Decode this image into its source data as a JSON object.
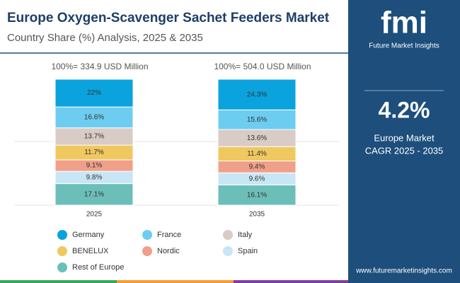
{
  "chart_data": {
    "type": "stacked_bar",
    "title": "Europe Oxygen-Scavenger Sachet Feeders Market",
    "subtitle": "Country Share (%) Analysis, 2025 & 2035",
    "categories": [
      "2025",
      "2035"
    ],
    "category_totals": [
      "100%= 334.9 USD Million",
      "100%= 504.0 USD Million"
    ],
    "ylim": [
      0,
      100
    ],
    "series": [
      {
        "name": "Germany",
        "color": "#0aa3dd",
        "values": [
          22,
          24.3
        ],
        "value_labels": [
          "22%",
          "24.3%"
        ]
      },
      {
        "name": "France",
        "color": "#6dcdf0",
        "values": [
          16.6,
          15.6
        ],
        "value_labels": [
          "16.6%",
          "15.6%"
        ]
      },
      {
        "name": "Italy",
        "color": "#d9cbc5",
        "values": [
          13.7,
          13.6
        ],
        "value_labels": [
          "13.7%",
          "13.6%"
        ]
      },
      {
        "name": "BENELUX",
        "color": "#f0c860",
        "values": [
          11.7,
          11.4
        ],
        "value_labels": [
          "11.7%",
          "11.4%"
        ]
      },
      {
        "name": "Nordic",
        "color": "#f0a08a",
        "values": [
          9.1,
          9.4
        ],
        "value_labels": [
          "9.1%",
          "9.4%"
        ]
      },
      {
        "name": "Spain",
        "color": "#c8e6f5",
        "values": [
          9.8,
          9.6
        ],
        "value_labels": [
          "9.8%",
          "9.6%"
        ]
      },
      {
        "name": "Rest of Europe",
        "color": "#6cbfb8",
        "values": [
          17.1,
          16.1
        ],
        "value_labels": [
          "17.1%",
          "16.1%"
        ]
      }
    ]
  },
  "sidebar": {
    "logo": "fmi",
    "brand": "Future Market Insights",
    "cagr": "4.2%",
    "region": "Europe Market",
    "period": "CAGR 2025 - 2035",
    "website": "www.futuremarketinsights.com"
  }
}
